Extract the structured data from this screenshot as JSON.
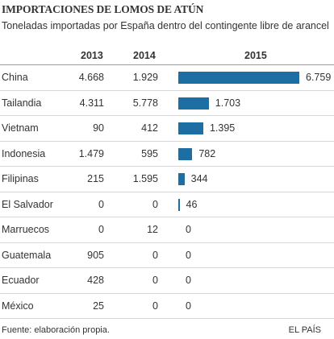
{
  "chart_data": {
    "type": "table",
    "title": "IMPORTACIONES DE LOMOS DE ATÚN",
    "subtitle": "Toneladas importadas por España dentro del contingente libre de arancel",
    "columns": [
      "2013",
      "2014",
      "2015"
    ],
    "bar_column": "2015",
    "bar_color": "#1d6fa3",
    "rows": [
      {
        "country": "China",
        "y2013": "4.668",
        "y2014": "1.929",
        "y2015": 6759,
        "y2015_label": "6.759"
      },
      {
        "country": "Tailandia",
        "y2013": "4.311",
        "y2014": "5.778",
        "y2015": 1703,
        "y2015_label": "1.703"
      },
      {
        "country": "Vietnam",
        "y2013": "90",
        "y2014": "412",
        "y2015": 1395,
        "y2015_label": "1.395"
      },
      {
        "country": "Indonesia",
        "y2013": "1.479",
        "y2014": "595",
        "y2015": 782,
        "y2015_label": "782"
      },
      {
        "country": "Filipinas",
        "y2013": "215",
        "y2014": "1.595",
        "y2015": 344,
        "y2015_label": "344"
      },
      {
        "country": "El Salvador",
        "y2013": "0",
        "y2014": "0",
        "y2015": 46,
        "y2015_label": "46"
      },
      {
        "country": "Marruecos",
        "y2013": "0",
        "y2014": "12",
        "y2015": 0,
        "y2015_label": "0"
      },
      {
        "country": "Guatemala",
        "y2013": "905",
        "y2014": "0",
        "y2015": 0,
        "y2015_label": "0"
      },
      {
        "country": "Ecuador",
        "y2013": "428",
        "y2014": "0",
        "y2015": 0,
        "y2015_label": "0"
      },
      {
        "country": "México",
        "y2013": "25",
        "y2014": "0",
        "y2015": 0,
        "y2015_label": "0"
      }
    ]
  },
  "footer": {
    "source": "Fuente: elaboración propia.",
    "publisher": "EL PAÍS"
  }
}
